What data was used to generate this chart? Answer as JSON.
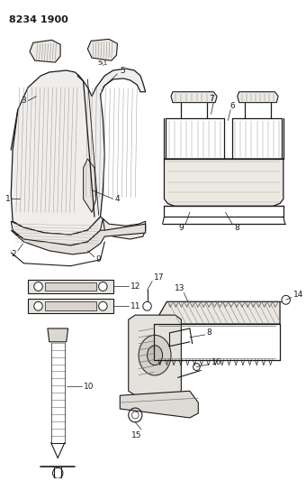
{
  "title": "8234 1900",
  "bg_color": "#ffffff",
  "line_color": "#1a1a1a",
  "title_fontsize": 8,
  "title_fontweight": "bold"
}
